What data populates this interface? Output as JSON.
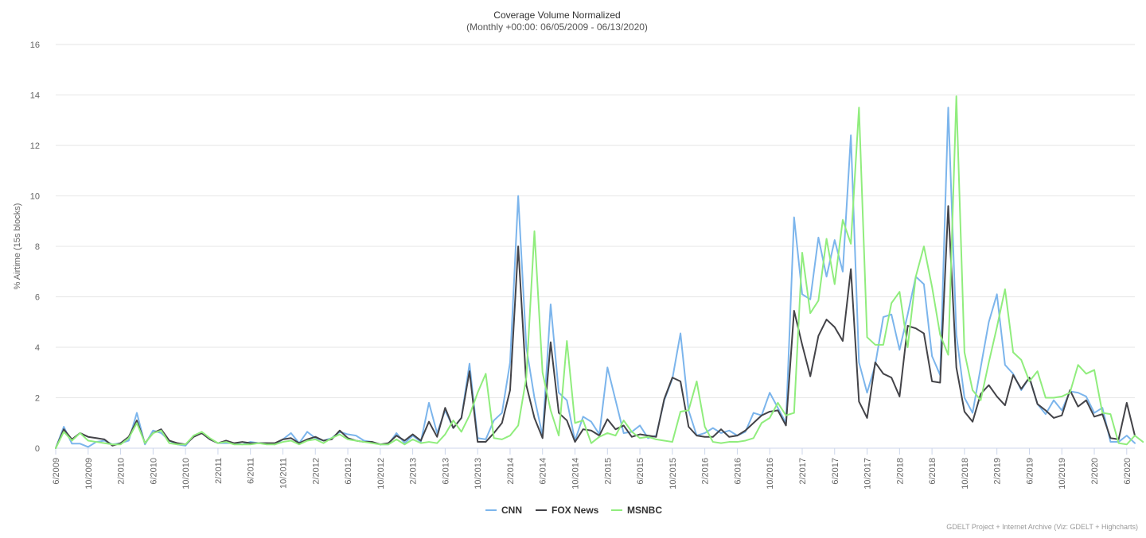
{
  "chart_data": {
    "type": "line",
    "title": "Coverage Volume Normalized",
    "subtitle": "(Monthly +00:00: 06/05/2009 - 06/13/2020)",
    "xlabel": "",
    "ylabel": "% Airtime (15s blocks)",
    "ylim": [
      0,
      16
    ],
    "yticks": [
      0,
      2,
      4,
      6,
      8,
      10,
      12,
      14,
      16
    ],
    "grid": true,
    "legend_position": "bottom-center",
    "credits": "GDELT Project + Internet Archive (Viz: GDELT + Highcharts)",
    "x_tick_labels": [
      "6/2009",
      "10/2009",
      "2/2010",
      "6/2010",
      "10/2010",
      "2/2011",
      "6/2011",
      "10/2011",
      "2/2012",
      "6/2012",
      "10/2012",
      "2/2013",
      "6/2013",
      "10/2013",
      "2/2014",
      "6/2014",
      "10/2014",
      "2/2015",
      "6/2015",
      "10/2015",
      "2/2016",
      "6/2016",
      "10/2016",
      "2/2017",
      "6/2017",
      "10/2017",
      "2/2018",
      "6/2018",
      "10/2018",
      "2/2019",
      "6/2019",
      "10/2019",
      "2/2020",
      "6/2020"
    ],
    "series": [
      {
        "name": "CNN",
        "color": "#7cb5ec",
        "values": [
          0.0,
          0.85,
          0.18,
          0.18,
          0.05,
          0.25,
          0.3,
          0.15,
          0.2,
          0.3,
          1.4,
          0.15,
          0.7,
          0.6,
          0.3,
          0.15,
          0.1,
          0.5,
          0.6,
          0.35,
          0.2,
          0.2,
          0.2,
          0.15,
          0.25,
          0.2,
          0.2,
          0.15,
          0.35,
          0.6,
          0.2,
          0.65,
          0.4,
          0.3,
          0.4,
          0.65,
          0.55,
          0.5,
          0.3,
          0.25,
          0.15,
          0.15,
          0.6,
          0.2,
          0.5,
          0.25,
          1.8,
          0.6,
          1.5,
          0.8,
          1.2,
          3.35,
          0.4,
          0.35,
          1.1,
          1.4,
          3.4,
          10.0,
          4.0,
          2.0,
          0.5,
          5.7,
          2.2,
          1.9,
          0.3,
          1.25,
          1.05,
          0.55,
          3.2,
          1.9,
          0.6,
          0.65,
          0.9,
          0.4,
          0.5,
          1.9,
          2.75,
          4.55,
          1.5,
          0.5,
          0.6,
          0.8,
          0.6,
          0.7,
          0.5,
          0.65,
          1.4,
          1.3,
          2.2,
          1.6,
          1.0,
          9.15,
          6.1,
          5.9,
          8.35,
          6.8,
          8.25,
          7.0,
          12.4,
          3.4,
          2.2,
          3.3,
          5.2,
          5.3,
          3.9,
          5.3,
          6.8,
          6.5,
          3.65,
          2.9,
          13.5,
          4.5,
          2.0,
          1.4,
          3.2,
          5.0,
          6.1,
          3.3,
          2.95,
          2.3,
          2.8,
          1.75,
          1.35,
          1.9,
          1.5,
          2.25,
          2.2,
          2.05,
          1.4,
          1.6,
          0.25,
          0.25,
          0.5,
          0.2
        ]
      },
      {
        "name": "FOX News",
        "color": "#434348",
        "values": [
          0.0,
          0.75,
          0.35,
          0.6,
          0.45,
          0.4,
          0.35,
          0.1,
          0.2,
          0.45,
          1.1,
          0.2,
          0.6,
          0.75,
          0.3,
          0.2,
          0.15,
          0.45,
          0.6,
          0.35,
          0.2,
          0.3,
          0.2,
          0.25,
          0.2,
          0.2,
          0.2,
          0.2,
          0.35,
          0.4,
          0.2,
          0.35,
          0.45,
          0.3,
          0.35,
          0.7,
          0.4,
          0.3,
          0.25,
          0.25,
          0.15,
          0.2,
          0.5,
          0.3,
          0.55,
          0.3,
          1.05,
          0.45,
          1.6,
          0.8,
          1.2,
          3.05,
          0.25,
          0.25,
          0.6,
          1.0,
          2.3,
          8.0,
          2.5,
          1.2,
          0.4,
          4.2,
          1.4,
          1.1,
          0.25,
          0.75,
          0.7,
          0.5,
          1.15,
          0.75,
          0.9,
          0.45,
          0.55,
          0.5,
          0.45,
          1.95,
          2.8,
          2.65,
          0.85,
          0.5,
          0.45,
          0.45,
          0.75,
          0.45,
          0.5,
          0.7,
          1.0,
          1.3,
          1.45,
          1.5,
          0.9,
          5.45,
          4.1,
          2.85,
          4.45,
          5.1,
          4.8,
          4.25,
          7.1,
          1.85,
          1.2,
          3.4,
          2.95,
          2.8,
          2.05,
          4.85,
          4.75,
          4.55,
          2.65,
          2.6,
          9.6,
          3.2,
          1.45,
          1.05,
          2.15,
          2.5,
          2.05,
          1.7,
          2.9,
          2.35,
          2.8,
          1.75,
          1.5,
          1.2,
          1.3,
          2.3,
          1.65,
          1.9,
          1.25,
          1.35,
          0.4,
          0.35,
          1.8,
          0.5
        ]
      },
      {
        "name": "MSNBC",
        "color": "#90ed7d",
        "values": [
          0.0,
          0.65,
          0.3,
          0.6,
          0.3,
          0.25,
          0.2,
          0.15,
          0.15,
          0.4,
          1.0,
          0.2,
          0.6,
          0.7,
          0.2,
          0.15,
          0.15,
          0.5,
          0.65,
          0.4,
          0.2,
          0.25,
          0.15,
          0.15,
          0.15,
          0.2,
          0.15,
          0.15,
          0.25,
          0.3,
          0.15,
          0.3,
          0.35,
          0.2,
          0.4,
          0.55,
          0.35,
          0.3,
          0.25,
          0.2,
          0.15,
          0.15,
          0.35,
          0.15,
          0.35,
          0.2,
          0.25,
          0.2,
          0.55,
          1.1,
          0.65,
          1.3,
          2.2,
          2.95,
          0.4,
          0.35,
          0.5,
          0.9,
          2.8,
          8.6,
          3.0,
          1.5,
          0.5,
          4.25,
          1.0,
          1.1,
          0.2,
          0.45,
          0.6,
          0.5,
          1.1,
          0.65,
          0.4,
          0.45,
          0.35,
          0.3,
          0.25,
          1.45,
          1.5,
          2.65,
          0.85,
          0.25,
          0.2,
          0.25,
          0.25,
          0.3,
          0.4,
          1.0,
          1.2,
          1.8,
          1.3,
          1.4,
          7.75,
          5.35,
          5.85,
          8.3,
          6.5,
          9.05,
          8.1,
          13.5,
          4.4,
          4.1,
          4.1,
          5.75,
          6.2,
          4.0,
          6.8,
          8.0,
          6.4,
          4.5,
          3.7,
          13.95,
          3.8,
          2.3,
          1.9,
          3.4,
          4.8,
          6.3,
          3.8,
          3.5,
          2.65,
          3.05,
          2.0,
          2.0,
          2.05,
          2.2,
          3.3,
          2.95,
          3.1,
          1.4,
          1.35,
          0.2,
          0.15,
          0.5,
          0.25
        ]
      }
    ]
  }
}
